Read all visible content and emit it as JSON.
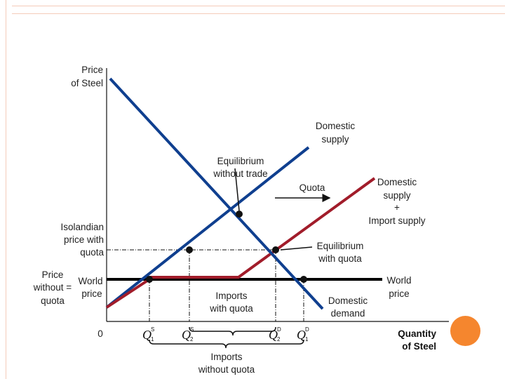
{
  "axes": {
    "y_label_line1": "Price",
    "y_label_line2": "of Steel",
    "x_label_line1": "Quantity",
    "x_label_line2": "of Steel",
    "origin": "0"
  },
  "curves": {
    "domestic_supply_line1": "Domestic",
    "domestic_supply_line2": "supply",
    "supply_plus_line1": "Domestic",
    "supply_plus_line2": "supply",
    "supply_plus_line3": "+",
    "supply_plus_line4": "Import supply",
    "domestic_demand_line1": "Domestic",
    "domestic_demand_line2": "demand",
    "world_price_line1": "World",
    "world_price_line2": "price"
  },
  "annotations": {
    "eq_no_trade_line1": "Equilibrium",
    "eq_no_trade_line2": "without trade",
    "quota": "Quota",
    "eq_quota_line1": "Equilibrium",
    "eq_quota_line2": "with quota",
    "imports_quota_line1": "Imports",
    "imports_quota_line2": "with quota",
    "imports_no_quota_line1": "Imports",
    "imports_no_quota_line2": "without quota"
  },
  "price_labels": {
    "isolandian_line1": "Isolandian",
    "isolandian_line2": "price with",
    "isolandian_line3": "quota",
    "without_line1": "Price",
    "without_line2": "without =",
    "without_line3": "quota",
    "world_line1": "World",
    "world_line2": "price"
  },
  "quantity_labels": {
    "q1s": {
      "base": "Q",
      "sub": "1",
      "sup": "S"
    },
    "q2s": {
      "base": "Q",
      "sub": "2",
      "sup": "S"
    },
    "q2d": {
      "base": "Q",
      "sub": "2",
      "sup": "D"
    },
    "q1d": {
      "base": "Q",
      "sub": "1",
      "sup": "D"
    }
  },
  "colors": {
    "domestic_supply": "#0f3f8f",
    "domestic_demand": "#0f3f8f",
    "supply_plus_imports": "#a11c2a",
    "world_price": "#000000",
    "accent_circle": "#f5862e"
  }
}
